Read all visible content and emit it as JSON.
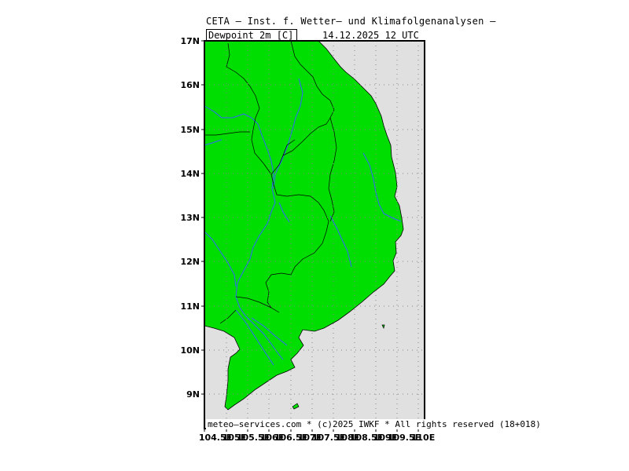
{
  "header": {
    "title": "CETA — Inst. f. Wetter— und Klimafolgenanalysen —",
    "parameter": "Dewpoint_2m_[C]",
    "valid_time": "14.12.2025  12 UTC"
  },
  "footer": {
    "credit": "meteo—services.com * (c)2025 IWKF * All rights reserved (18+018)"
  },
  "axes": {
    "lat_labels": [
      "17N",
      "16N",
      "15N",
      "14N",
      "13N",
      "12N",
      "11N",
      "10N",
      "9N"
    ],
    "lon_labels": [
      "104.5E",
      "105E",
      "105.5E",
      "106E",
      "106.5E",
      "107E",
      "107.5E",
      "108E",
      "108.5E",
      "109E",
      "109.5E",
      "110E"
    ]
  },
  "colors": {
    "land_fill": "#00dd00",
    "sea_fill": "#e0e0e0",
    "rivers": "#3366ff",
    "borders": "#000000",
    "grid": "#888888"
  }
}
